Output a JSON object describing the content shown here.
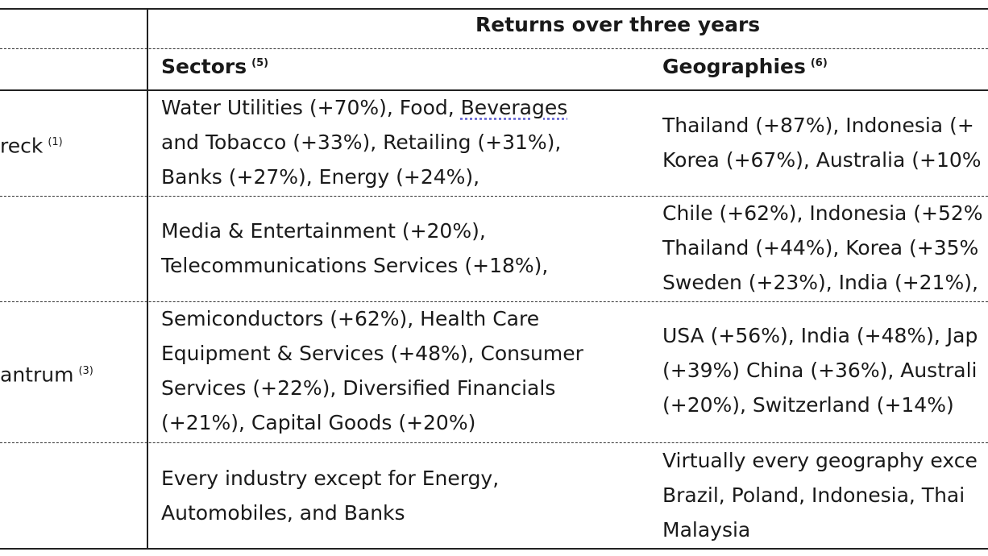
{
  "header": {
    "title": "Returns over three years",
    "sectors_label": "Sectors",
    "sectors_note": "(5)",
    "geographies_label": "Geographies",
    "geographies_note": "(6)"
  },
  "rows": [
    {
      "label": "reck",
      "note": "(1)",
      "sectors": [
        "Water Utilities (+70%), Food, ",
        "Beverages",
        "and Tobacco (+33%), Retailing (+31%),",
        "Banks (+27%), Energy (+24%),"
      ],
      "geographies": [
        "Thailand (+87%), Indonesia (+",
        "Korea (+67%), Australia (+10%"
      ]
    },
    {
      "sectors": [
        "Media & Entertainment (+20%),",
        "Telecommunications Services (+18%),"
      ],
      "geographies": [
        "Chile (+62%), Indonesia (+52%",
        "Thailand (+44%), Korea (+35%",
        "Sweden (+23%), India (+21%),"
      ]
    },
    {
      "label": "antrum",
      "note": "(3)",
      "sectors": [
        "Semiconductors (+62%), Health Care",
        "Equipment & Services (+48%), Consumer",
        "Services (+22%), Diversified Financials",
        "(+21%), Capital Goods (+20%)"
      ],
      "geographies": [
        "USA (+56%), India (+48%), Jap",
        "(+39%) China (+36%), Australi",
        "(+20%), Switzerland (+14%)"
      ]
    },
    {
      "sectors": [
        "Every industry except for Energy,",
        "Automobiles, and Banks"
      ],
      "geographies": [
        "Virtually every geography exce",
        "Brazil, Poland, Indonesia, Thai",
        "Malaysia"
      ]
    }
  ]
}
